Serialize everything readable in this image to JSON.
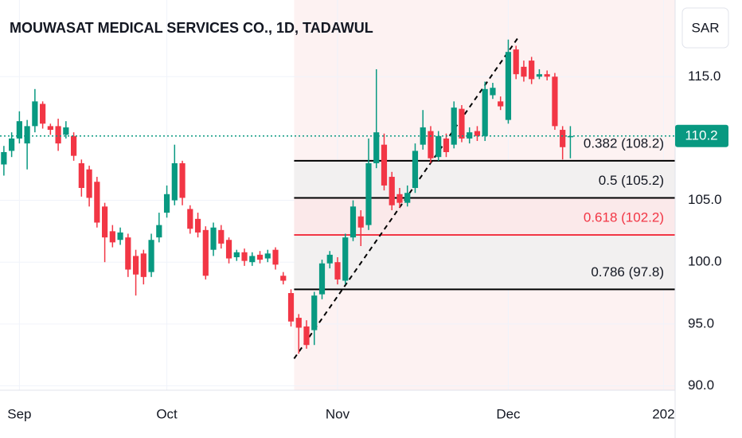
{
  "chart_data": {
    "type": "candlestick",
    "title": "MOUWASAT MEDICAL SERVICES CO., 1D, TADAWUL",
    "currency": "SAR",
    "categories": [
      null,
      null,
      "Sep",
      null,
      null,
      null,
      null,
      null,
      null,
      null,
      null,
      null,
      null,
      null,
      null,
      null,
      null,
      null,
      null,
      null,
      null,
      "Oct",
      null,
      null,
      null,
      null,
      null,
      null,
      null,
      null,
      null,
      null,
      null,
      null,
      null,
      null,
      null,
      null,
      null,
      null,
      null,
      null,
      null,
      "Nov",
      null,
      null,
      null,
      null,
      null,
      null,
      null,
      null,
      null,
      null,
      null,
      null,
      null,
      null,
      null,
      null,
      null,
      null,
      null,
      null,
      null,
      "Dec",
      null,
      null,
      null,
      null,
      null,
      null,
      null,
      null,
      null,
      null,
      null,
      null,
      null,
      null,
      null,
      null,
      null,
      null,
      null,
      "202",
      null
    ],
    "series": [
      {
        "up_color": "#089981",
        "down_color": "#f23645",
        "open": [
          107.9,
          109.0,
          110.0,
          109.6,
          111.0,
          112.8,
          111.0,
          111.0,
          110.3,
          110.2,
          108.0,
          107.5,
          106.5,
          104.5,
          102.5,
          101.8,
          102.0,
          100.5,
          100.7,
          99.2,
          102.0,
          104.0,
          105.0,
          108.0,
          104.3,
          103.5,
          102.6,
          101.0,
          102.6,
          101.8,
          100.4,
          100.8,
          100.0,
          100.6,
          100.3,
          101.0,
          98.9,
          97.5,
          95.5,
          94.8,
          94.5,
          97.4,
          99.9,
          100.0,
          98.5,
          102.0,
          103.7,
          103.0,
          108.0,
          109.5,
          106.9,
          105.5,
          104.8,
          106.0,
          109.5,
          110.6,
          108.5,
          110.0,
          109.5,
          112.4,
          110.0,
          110.6,
          110.2,
          113.5,
          113.0,
          111.5,
          117.2,
          115.8,
          116.3,
          115.0,
          115.2,
          115.0,
          110.7,
          110.1,
          null,
          null,
          null,
          null,
          null,
          null,
          null,
          null,
          null,
          null,
          null,
          null,
          null
        ],
        "high": [
          109.4,
          110.5,
          112.2,
          111.5,
          114.0,
          113.0,
          111.2,
          111.6,
          111.4,
          110.5,
          108.3,
          107.8,
          106.9,
          104.8,
          103.0,
          102.8,
          102.3,
          101.0,
          101.0,
          102.3,
          104.0,
          106.2,
          109.5,
          108.2,
          104.6,
          104.0,
          102.9,
          103.2,
          103.0,
          102.0,
          101.0,
          101.1,
          100.8,
          100.9,
          101.0,
          101.2,
          99.2,
          97.8,
          95.8,
          95.3,
          97.6,
          100.2,
          100.9,
          100.4,
          102.3,
          105.0,
          104.2,
          110.0,
          115.6,
          110.4,
          107.3,
          106.0,
          106.2,
          109.6,
          112.3,
          111.0,
          110.6,
          110.4,
          113.0,
          112.7,
          110.9,
          111.0,
          114.6,
          114.5,
          113.4,
          118.0,
          117.5,
          116.3,
          116.6,
          115.6,
          115.5,
          115.3,
          111.0,
          111.0,
          null,
          null,
          null,
          null,
          null,
          null,
          null,
          null,
          null,
          null,
          null,
          null,
          null
        ],
        "low": [
          107.0,
          108.5,
          109.6,
          107.5,
          110.5,
          110.8,
          110.3,
          109.0,
          110.0,
          108.2,
          105.3,
          104.5,
          102.8,
          100.0,
          101.2,
          101.4,
          98.8,
          97.3,
          98.2,
          98.8,
          101.6,
          103.6,
          104.6,
          104.6,
          102.3,
          102.0,
          98.6,
          100.5,
          101.1,
          99.9,
          100.1,
          99.7,
          99.7,
          99.9,
          100.0,
          99.4,
          98.2,
          94.8,
          92.6,
          93.0,
          93.3,
          97.0,
          99.5,
          98.2,
          98.2,
          101.7,
          101.3,
          102.6,
          107.6,
          105.8,
          104.2,
          104.4,
          104.5,
          105.6,
          109.1,
          108.0,
          108.2,
          108.5,
          109.2,
          109.7,
          109.6,
          109.8,
          109.8,
          113.2,
          112.3,
          111.2,
          114.8,
          114.6,
          114.4,
          114.8,
          114.7,
          110.7,
          108.3,
          108.4,
          null,
          null,
          null,
          null,
          null,
          null,
          null,
          null,
          null,
          null,
          null,
          null,
          null
        ],
        "close": [
          108.9,
          110.0,
          111.4,
          111.0,
          113.0,
          111.2,
          110.7,
          109.6,
          110.9,
          108.6,
          106.0,
          105.2,
          103.2,
          102.0,
          101.6,
          102.4,
          99.4,
          99.0,
          98.8,
          101.8,
          103.0,
          105.5,
          108.0,
          105.2,
          102.7,
          102.4,
          98.9,
          102.8,
          101.5,
          100.3,
          100.8,
          100.1,
          100.5,
          100.2,
          100.7,
          99.8,
          98.5,
          95.2,
          94.7,
          93.3,
          97.3,
          99.9,
          100.6,
          98.6,
          102.0,
          104.5,
          102.8,
          108.0,
          110.5,
          106.2,
          104.6,
          104.8,
          105.6,
          109.0,
          110.9,
          108.4,
          110.2,
          108.9,
          112.5,
          110.0,
          110.5,
          110.2,
          114.0,
          114.1,
          112.6,
          117.0,
          115.2,
          115.0,
          114.8,
          115.2,
          115.0,
          111.0,
          109.3,
          110.2,
          null,
          null,
          null,
          null,
          null,
          null,
          null,
          null,
          null,
          null,
          null,
          null,
          null
        ]
      }
    ],
    "ylim": [
      89.0,
      121.2
    ],
    "yticks": [
      {
        "value": 90,
        "label": "90.0"
      },
      {
        "value": 95,
        "label": "95.0"
      },
      {
        "value": 100,
        "label": "100.0"
      },
      {
        "value": 105,
        "label": "105.0"
      },
      {
        "value": 115,
        "label": "115.0"
      }
    ],
    "grid": true,
    "last_price": 110.2,
    "last_price_color": "#089981",
    "trend_line": {
      "x": [
        37.4,
        66.2
      ],
      "values": [
        92.2,
        118.1
      ]
    },
    "fib_levels": [
      {
        "value": 108.2,
        "label": "0.382 (108.2)",
        "color": "#000000"
      },
      {
        "value": 105.2,
        "label": "0.5 (105.2)",
        "color": "#000000"
      },
      {
        "value": 102.2,
        "label": "0.618 (102.2)",
        "color": "#f23645"
      },
      {
        "value": 97.8,
        "label": "0.786 (97.8)",
        "color": "#000000"
      }
    ]
  }
}
